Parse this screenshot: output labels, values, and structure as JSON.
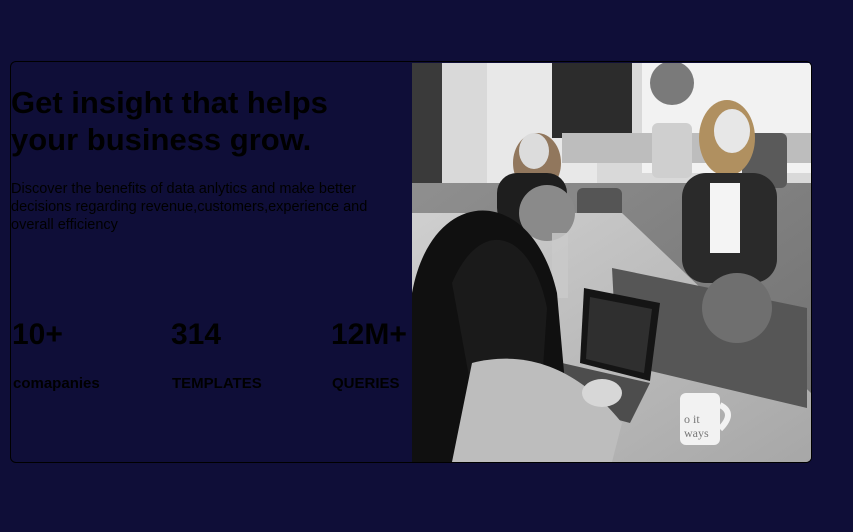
{
  "hero": {
    "headline_line1": "Get insight that helps",
    "headline_line2": "your business grow.",
    "description": "Discover the benefits of data anlytics and make better decisions regarding revenue,customers,experience and overall efficiency"
  },
  "stats": [
    {
      "value": "10+",
      "label": "comapanies"
    },
    {
      "value": "314",
      "label": "TEMPLATES"
    },
    {
      "value": "12M+",
      "label": "QUERIES"
    }
  ],
  "photo": {
    "icon": "office-team-photo",
    "mug_text": "o it\nways"
  },
  "colors": {
    "page_background": "#0f0e38",
    "text": "#000000"
  }
}
